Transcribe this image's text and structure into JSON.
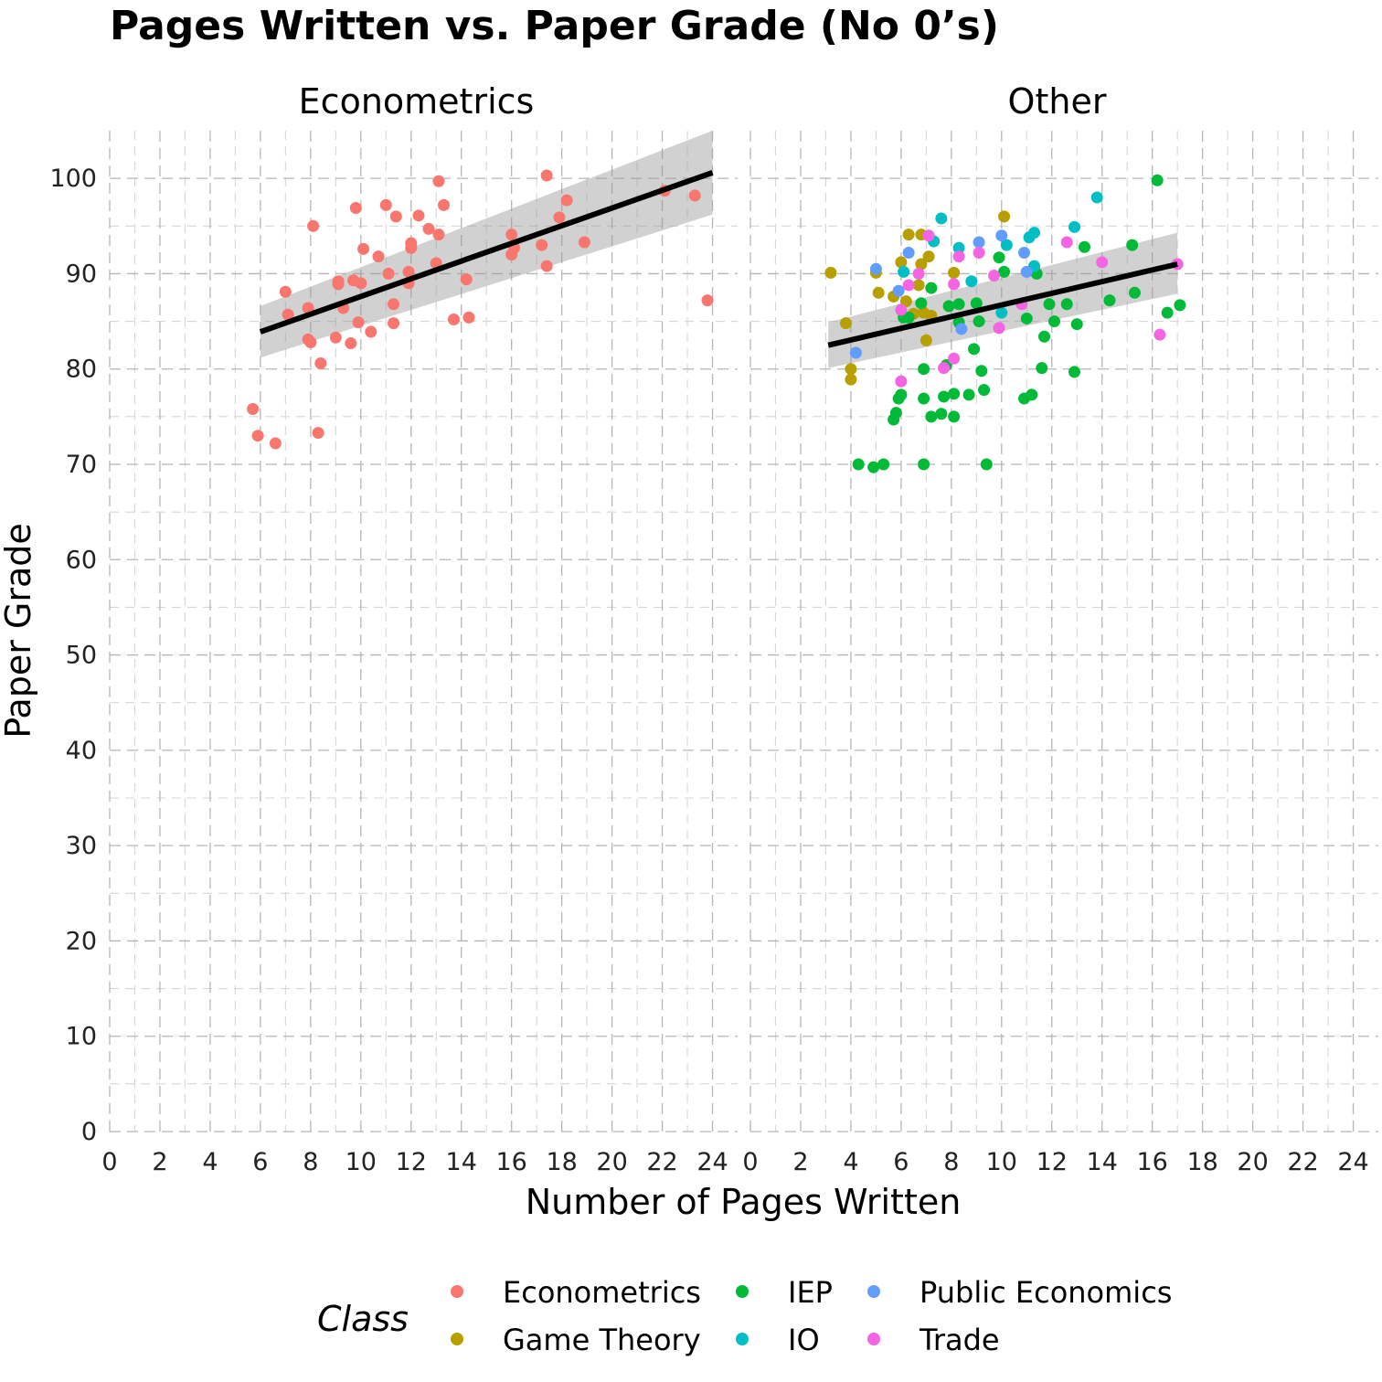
{
  "chart_data": {
    "type": "scatter",
    "title": "Pages Written vs. Paper Grade (No 0’s)",
    "xlabel": "Number of Pages Written",
    "ylabel": "Paper Grade",
    "xlim": [
      0,
      25
    ],
    "ylim": [
      0,
      105
    ],
    "x_ticks": [
      "0",
      "2",
      "4",
      "6",
      "8",
      "10",
      "12",
      "14",
      "16",
      "18",
      "20",
      "22",
      "24"
    ],
    "y_ticks": [
      "0",
      "10",
      "20",
      "30",
      "40",
      "50",
      "60",
      "70",
      "80",
      "90",
      "100"
    ],
    "grid": true,
    "legend": {
      "title": "Class",
      "placement": "bottom",
      "entries": [
        {
          "name": "Econometrics",
          "color": "#F8766D"
        },
        {
          "name": "Game Theory",
          "color": "#B79F00"
        },
        {
          "name": "IEP",
          "color": "#00BA38"
        },
        {
          "name": "IO",
          "color": "#00BFC4"
        },
        {
          "name": "Public Economics",
          "color": "#619CFF"
        },
        {
          "name": "Trade",
          "color": "#F564E3"
        }
      ]
    },
    "panels": [
      {
        "strip": "Econometrics",
        "fit": {
          "x": [
            6,
            24
          ],
          "y": [
            83.9,
            100.6
          ],
          "lower": [
            81.2,
            96.2
          ],
          "upper": [
            86.6,
            105.0
          ]
        },
        "series": [
          {
            "name": "Econometrics",
            "points": [
              [
                5.7,
                75.8
              ],
              [
                5.9,
                73.0
              ],
              [
                6.6,
                72.2
              ],
              [
                7.0,
                88.1
              ],
              [
                7.1,
                85.7
              ],
              [
                7.9,
                83.1
              ],
              [
                7.9,
                86.4
              ],
              [
                8.0,
                82.8
              ],
              [
                8.1,
                95.0
              ],
              [
                8.3,
                73.3
              ],
              [
                8.4,
                80.6
              ],
              [
                9.0,
                83.3
              ],
              [
                9.1,
                89.2
              ],
              [
                9.1,
                88.9
              ],
              [
                9.3,
                86.4
              ],
              [
                9.6,
                82.7
              ],
              [
                9.7,
                89.3
              ],
              [
                9.8,
                96.9
              ],
              [
                9.9,
                84.9
              ],
              [
                10.0,
                89.0
              ],
              [
                10.1,
                92.6
              ],
              [
                10.4,
                83.9
              ],
              [
                10.7,
                91.8
              ],
              [
                11.0,
                97.2
              ],
              [
                11.1,
                90.0
              ],
              [
                11.3,
                86.8
              ],
              [
                11.3,
                84.8
              ],
              [
                11.4,
                96.0
              ],
              [
                11.9,
                89.0
              ],
              [
                11.9,
                90.2
              ],
              [
                12.0,
                92.7
              ],
              [
                12.0,
                93.2
              ],
              [
                12.3,
                96.1
              ],
              [
                12.7,
                94.7
              ],
              [
                13.0,
                91.1
              ],
              [
                13.1,
                94.1
              ],
              [
                13.1,
                99.7
              ],
              [
                13.3,
                97.2
              ],
              [
                13.7,
                85.2
              ],
              [
                14.2,
                89.4
              ],
              [
                14.3,
                85.4
              ],
              [
                16.0,
                94.1
              ],
              [
                16.0,
                92.0
              ],
              [
                16.1,
                92.7
              ],
              [
                17.2,
                93.0
              ],
              [
                17.4,
                100.3
              ],
              [
                17.4,
                90.8
              ],
              [
                17.9,
                95.9
              ],
              [
                18.2,
                97.7
              ],
              [
                18.9,
                93.3
              ],
              [
                22.1,
                98.7
              ],
              [
                23.3,
                98.2
              ],
              [
                23.8,
                87.2
              ]
            ]
          }
        ]
      },
      {
        "strip": "Other",
        "fit": {
          "x": [
            3.1,
            17.0
          ],
          "y": [
            82.5,
            91.0
          ],
          "lower": [
            80.1,
            87.9
          ],
          "upper": [
            84.9,
            94.3
          ]
        },
        "series": [
          {
            "name": "Game Theory",
            "points": [
              [
                3.2,
                90.1
              ],
              [
                3.8,
                84.8
              ],
              [
                4.0,
                80.0
              ],
              [
                4.0,
                78.9
              ],
              [
                5.0,
                90.1
              ],
              [
                5.1,
                88.0
              ],
              [
                5.7,
                87.6
              ],
              [
                6.0,
                91.2
              ],
              [
                6.2,
                87.1
              ],
              [
                6.3,
                94.1
              ],
              [
                6.5,
                85.8
              ],
              [
                6.7,
                88.8
              ],
              [
                6.8,
                94.1
              ],
              [
                6.8,
                91.0
              ],
              [
                6.9,
                85.9
              ],
              [
                7.0,
                83.0
              ],
              [
                7.1,
                91.8
              ],
              [
                7.2,
                85.6
              ],
              [
                8.1,
                90.1
              ],
              [
                10.1,
                96.0
              ]
            ]
          },
          {
            "name": "IEP",
            "points": [
              [
                4.3,
                70.0
              ],
              [
                4.9,
                69.7
              ],
              [
                5.3,
                70.0
              ],
              [
                5.7,
                74.7
              ],
              [
                5.8,
                75.4
              ],
              [
                5.9,
                76.9
              ],
              [
                6.0,
                77.3
              ],
              [
                6.1,
                85.4
              ],
              [
                6.3,
                85.4
              ],
              [
                6.8,
                86.9
              ],
              [
                6.9,
                80.0
              ],
              [
                6.9,
                76.9
              ],
              [
                6.9,
                70.0
              ],
              [
                7.2,
                75.0
              ],
              [
                7.2,
                88.5
              ],
              [
                7.6,
                75.3
              ],
              [
                7.7,
                77.1
              ],
              [
                7.8,
                80.4
              ],
              [
                7.9,
                86.6
              ],
              [
                8.1,
                77.4
              ],
              [
                8.1,
                75.0
              ],
              [
                8.3,
                84.9
              ],
              [
                8.3,
                86.8
              ],
              [
                8.7,
                77.3
              ],
              [
                8.9,
                82.1
              ],
              [
                9.0,
                86.9
              ],
              [
                9.1,
                85.0
              ],
              [
                9.2,
                79.8
              ],
              [
                9.3,
                77.8
              ],
              [
                9.4,
                70.0
              ],
              [
                9.9,
                91.7
              ],
              [
                10.1,
                90.2
              ],
              [
                10.9,
                76.9
              ],
              [
                11.0,
                85.3
              ],
              [
                11.2,
                77.3
              ],
              [
                11.4,
                90.0
              ],
              [
                11.6,
                80.1
              ],
              [
                11.7,
                83.4
              ],
              [
                11.9,
                86.8
              ],
              [
                12.1,
                85.0
              ],
              [
                12.6,
                86.8
              ],
              [
                12.9,
                79.7
              ],
              [
                13.0,
                84.7
              ],
              [
                13.3,
                92.8
              ],
              [
                14.3,
                87.2
              ],
              [
                15.2,
                93.0
              ],
              [
                15.3,
                88.0
              ],
              [
                16.2,
                99.8
              ],
              [
                16.6,
                85.9
              ],
              [
                17.1,
                86.7
              ]
            ]
          },
          {
            "name": "IO",
            "points": [
              [
                6.1,
                90.2
              ],
              [
                7.3,
                93.4
              ],
              [
                7.6,
                95.8
              ],
              [
                8.3,
                92.7
              ],
              [
                8.8,
                89.2
              ],
              [
                10.0,
                85.9
              ],
              [
                10.2,
                93.0
              ],
              [
                11.1,
                93.8
              ],
              [
                11.3,
                94.3
              ],
              [
                11.3,
                90.8
              ],
              [
                12.9,
                94.9
              ],
              [
                13.8,
                98.0
              ]
            ]
          },
          {
            "name": "Public Economics",
            "points": [
              [
                4.2,
                81.7
              ],
              [
                5.0,
                90.5
              ],
              [
                5.9,
                88.2
              ],
              [
                6.3,
                92.2
              ],
              [
                8.4,
                84.2
              ],
              [
                9.1,
                93.3
              ],
              [
                10.0,
                94.0
              ],
              [
                10.9,
                92.2
              ],
              [
                11.0,
                90.2
              ]
            ]
          },
          {
            "name": "Trade",
            "points": [
              [
                6.0,
                86.2
              ],
              [
                6.0,
                78.7
              ],
              [
                6.3,
                88.8
              ],
              [
                6.7,
                90.0
              ],
              [
                7.1,
                94.0
              ],
              [
                7.7,
                80.1
              ],
              [
                8.1,
                88.9
              ],
              [
                8.1,
                81.1
              ],
              [
                8.3,
                91.8
              ],
              [
                9.1,
                92.2
              ],
              [
                9.7,
                89.8
              ],
              [
                9.9,
                84.3
              ],
              [
                10.8,
                86.8
              ],
              [
                12.6,
                93.3
              ],
              [
                14.0,
                91.2
              ],
              [
                16.3,
                83.6
              ],
              [
                17.0,
                91.0
              ]
            ]
          }
        ]
      }
    ]
  }
}
